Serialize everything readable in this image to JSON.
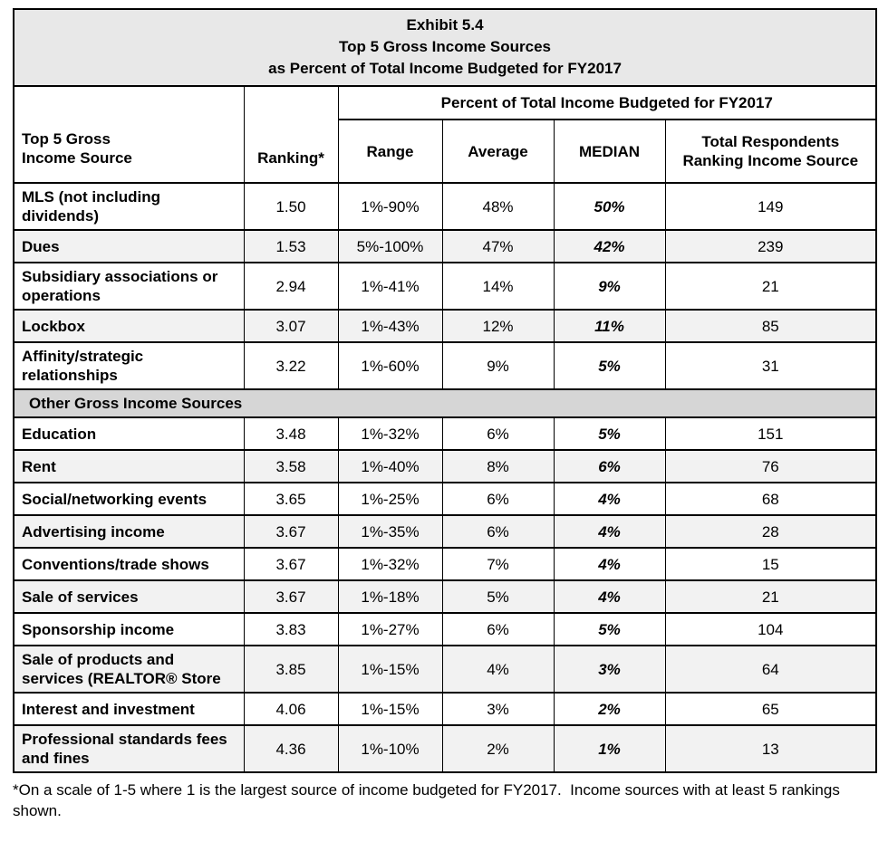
{
  "title": {
    "lines": [
      "Exhibit 5.4",
      "Top 5 Gross Income Sources",
      "as Percent of Total Income Budgeted for FY2017"
    ]
  },
  "table": {
    "col1_header": "Top 5 Gross\nIncome Source",
    "ranking_header": "Ranking*",
    "span_header": "Percent of Total Income Budgeted for FY2017",
    "sub_headers": {
      "range": "Range",
      "average": "Average",
      "median": "MEDIAN",
      "respondents": "Total Respondents\nRanking Income Source"
    },
    "top5_rows": [
      {
        "source": "MLS (not including\ndividends)",
        "ranking": "1.50",
        "range": "1%-90%",
        "average": "48%",
        "median": "50%",
        "respondents": "149"
      },
      {
        "source": "Dues",
        "ranking": "1.53",
        "range": "5%-100%",
        "average": "47%",
        "median": "42%",
        "respondents": "239"
      },
      {
        "source": "Subsidiary associations or\noperations",
        "ranking": "2.94",
        "range": "1%-41%",
        "average": "14%",
        "median": "9%",
        "respondents": "21"
      },
      {
        "source": "Lockbox",
        "ranking": "3.07",
        "range": "1%-43%",
        "average": "12%",
        "median": "11%",
        "respondents": "85"
      },
      {
        "source": "Affinity/strategic\nrelationships",
        "ranking": "3.22",
        "range": "1%-60%",
        "average": "9%",
        "median": "5%",
        "respondents": "31"
      }
    ],
    "section_label": "Other Gross Income Sources",
    "other_rows": [
      {
        "source": "Education",
        "ranking": "3.48",
        "range": "1%-32%",
        "average": "6%",
        "median": "5%",
        "respondents": "151"
      },
      {
        "source": "Rent",
        "ranking": "3.58",
        "range": "1%-40%",
        "average": "8%",
        "median": "6%",
        "respondents": "76"
      },
      {
        "source": "Social/networking events",
        "ranking": "3.65",
        "range": "1%-25%",
        "average": "6%",
        "median": "4%",
        "respondents": "68"
      },
      {
        "source": "Advertising income",
        "ranking": "3.67",
        "range": "1%-35%",
        "average": "6%",
        "median": "4%",
        "respondents": "28"
      },
      {
        "source": "Conventions/trade shows",
        "ranking": "3.67",
        "range": "1%-32%",
        "average": "7%",
        "median": "4%",
        "respondents": "15"
      },
      {
        "source": "Sale of services",
        "ranking": "3.67",
        "range": "1%-18%",
        "average": "5%",
        "median": "4%",
        "respondents": "21"
      },
      {
        "source": "Sponsorship income",
        "ranking": "3.83",
        "range": "1%-27%",
        "average": "6%",
        "median": "5%",
        "respondents": "104"
      },
      {
        "source": "Sale of products and\nservices (REALTOR® Store",
        "ranking": "3.85",
        "range": "1%-15%",
        "average": "4%",
        "median": "3%",
        "respondents": "64"
      },
      {
        "source": "Interest and investment",
        "ranking": "4.06",
        "range": "1%-15%",
        "average": "3%",
        "median": "2%",
        "respondents": "65"
      },
      {
        "source": "Professional standards fees\nand fines",
        "ranking": "4.36",
        "range": "1%-10%",
        "average": "2%",
        "median": "1%",
        "respondents": "13"
      }
    ]
  },
  "footnote": "*On a scale of 1-5 where 1 is the largest source of income budgeted for FY2017.  Income sources with at least 5 rankings shown.",
  "colors": {
    "title_band_bg": "#e8e8e8",
    "section_band_bg": "#d6d6d6",
    "alt_row_bg": "#f2f2f2",
    "border": "#000000"
  }
}
